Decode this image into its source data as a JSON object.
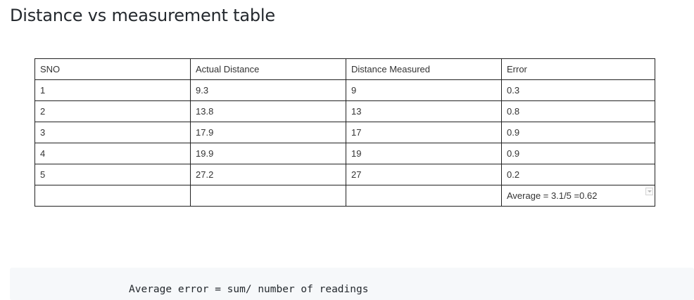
{
  "title": "Distance vs measurement table",
  "table": {
    "headers": [
      "SNO",
      "Actual Distance",
      "Distance Measured",
      "Error"
    ],
    "rows": [
      [
        "1",
        "9.3",
        "9",
        "0.3"
      ],
      [
        "2",
        "13.8",
        "13",
        "0.8"
      ],
      [
        "3",
        "17.9",
        "17",
        "0.9"
      ],
      [
        "4",
        "19.9",
        "19",
        "0.9"
      ],
      [
        "5",
        "27.2",
        "27",
        "0.2"
      ],
      [
        "",
        "",
        "",
        "Average = 3.1/5 =0.62"
      ]
    ]
  },
  "code": {
    "line": "Average error = sum/ number of readings"
  }
}
